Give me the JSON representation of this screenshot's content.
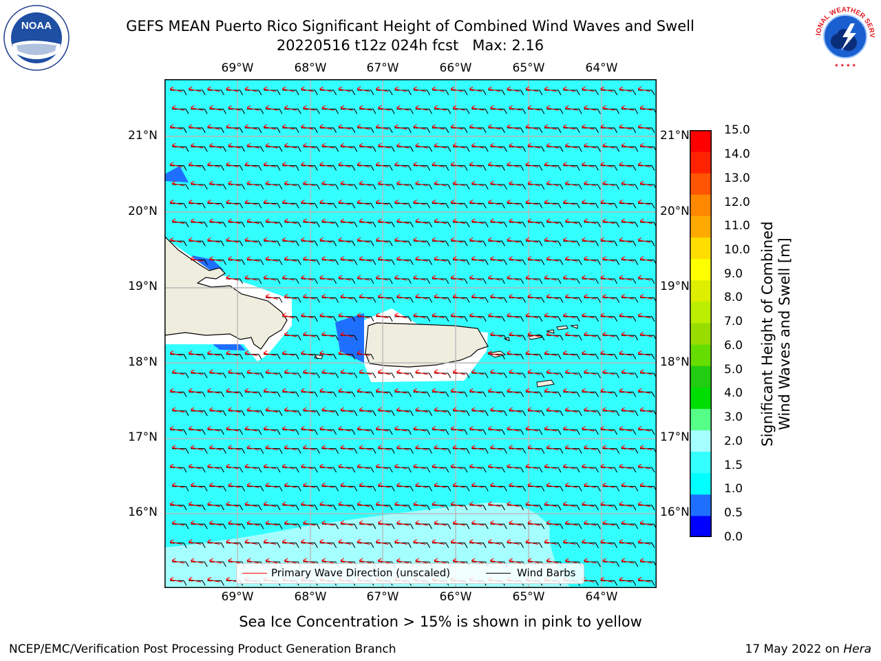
{
  "title_line1": "GEFS MEAN Puerto Rico Significant Height of Combined Wind Waves and Swell",
  "title_line2": "20220516 t12z 024h fcst   Max: 2.16",
  "map": {
    "lon_labels": [
      "69°W",
      "68°W",
      "67°W",
      "66°W",
      "65°W",
      "64°W"
    ],
    "lat_labels": [
      "21°N",
      "20°N",
      "19°N",
      "18°N",
      "17°N",
      "16°N"
    ],
    "extent": {
      "lon_min": -70.0,
      "lon_max": -63.25,
      "lat_min": 15.0,
      "lat_max": 21.75
    },
    "colors": {
      "ocean_main": "#33ffff",
      "ocean_lighter": "#a6ffff",
      "ocean_low": "#00ffff",
      "low_wave": "#1f6fff",
      "land": "#efedde"
    },
    "wave_direction_color": "#ff0000",
    "wind_barb_color": "#000000"
  },
  "legend": {
    "wave_direction": "Primary Wave Direction (unscaled)",
    "wind_barbs": "Wind Barbs"
  },
  "colorbar": {
    "label_line1": "Significant Height of Combined",
    "label_line2": "Wind Waves and Swell [m]",
    "ticks": [
      "15.0",
      "14.0",
      "13.0",
      "12.0",
      "11.0",
      "10.0",
      "9.0",
      "8.0",
      "7.0",
      "6.0",
      "5.0",
      "4.0",
      "3.0",
      "2.0",
      "1.5",
      "1.0",
      "0.5",
      "0.0"
    ],
    "colors_bottom_to_top": [
      "#0000ff",
      "#1f6fff",
      "#00ffff",
      "#33ffff",
      "#a6ffff",
      "#55ff88",
      "#00dd00",
      "#22cc11",
      "#66dd00",
      "#99dd00",
      "#bbee00",
      "#ddee00",
      "#ffff00",
      "#ffdd00",
      "#ffaa00",
      "#ff8800",
      "#ff5500",
      "#ff2200",
      "#ff0000"
    ]
  },
  "subtitle": "Sea Ice Concentration > 15% is shown in pink to yellow",
  "footer_left": "NCEP/EMC/Verification Post Processing Product Generation Branch",
  "footer_date": "17 May 2022 on ",
  "footer_host": "Hera",
  "logos": {
    "noaa_text": "NOAA",
    "nws_text": "NATIONAL WEATHER SERVICE"
  }
}
